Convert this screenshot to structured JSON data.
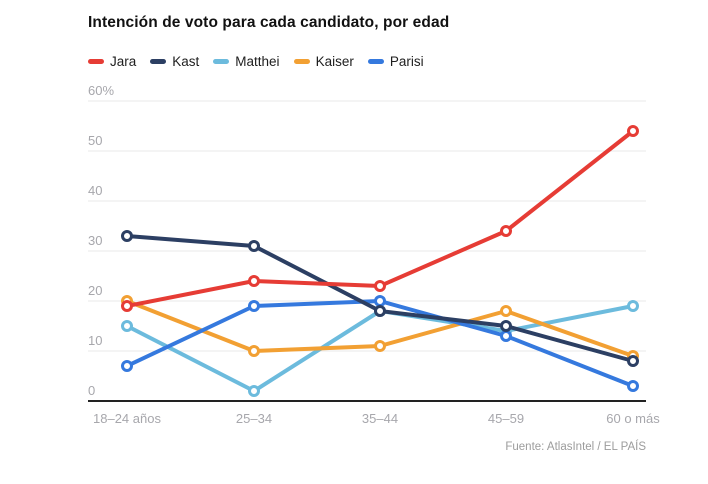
{
  "page": {
    "title": "Intención de voto para cada candidato, por edad",
    "source": "Fuente: AtlasIntel / EL PAÍS"
  },
  "chart_data": {
    "type": "line",
    "title": "Intención de voto para cada candidato, por edad",
    "categories": [
      "18–24 años",
      "25–34",
      "35–44",
      "45–59",
      "60 o más"
    ],
    "series": [
      {
        "name": "Jara",
        "color": "#e63c35",
        "values": [
          19,
          24,
          23,
          34,
          54
        ]
      },
      {
        "name": "Kast",
        "color": "#2c3f63",
        "values": [
          33,
          31,
          18,
          15,
          8
        ]
      },
      {
        "name": "Matthei",
        "color": "#6cbbdd",
        "values": [
          15,
          2,
          18,
          14,
          19
        ]
      },
      {
        "name": "Kaiser",
        "color": "#f2a033",
        "values": [
          20,
          10,
          11,
          18,
          9
        ]
      },
      {
        "name": "Parisi",
        "color": "#3579de",
        "values": [
          7,
          19,
          20,
          13,
          3
        ]
      }
    ],
    "xlabel": "",
    "ylabel": "",
    "ylim": [
      0,
      60
    ],
    "yticks": [
      0,
      10,
      20,
      30,
      40,
      50,
      60
    ],
    "ytick_labels": [
      "0",
      "10",
      "20",
      "30",
      "40",
      "50",
      "60%"
    ],
    "grid": true,
    "legend_position": "top-left",
    "unit": "%"
  }
}
